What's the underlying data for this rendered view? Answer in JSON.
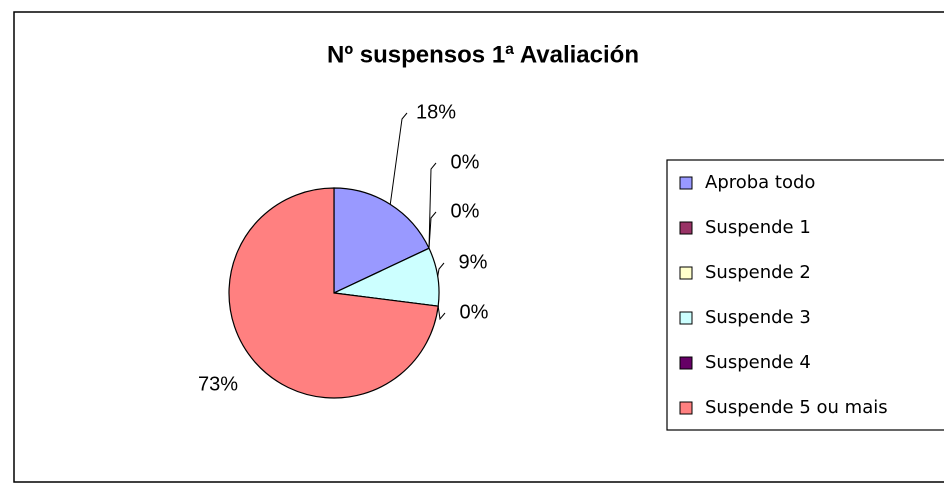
{
  "chart_data": {
    "type": "pie",
    "title": "Nº suspensos 1ª Avaliación",
    "categories": [
      "Aproba todo",
      "Suspende 1",
      "Suspende 2",
      "Suspende 3",
      "Suspende 4",
      "Suspende 5 ou mais"
    ],
    "values": [
      18,
      0,
      0,
      9,
      0,
      73
    ],
    "value_labels": [
      "18%",
      "0%",
      "0%",
      "9%",
      "0%",
      "73%"
    ],
    "colors": [
      "#9999ff",
      "#993366",
      "#ffffcc",
      "#ccffff",
      "#660066",
      "#ff8080"
    ],
    "legend": "right"
  }
}
